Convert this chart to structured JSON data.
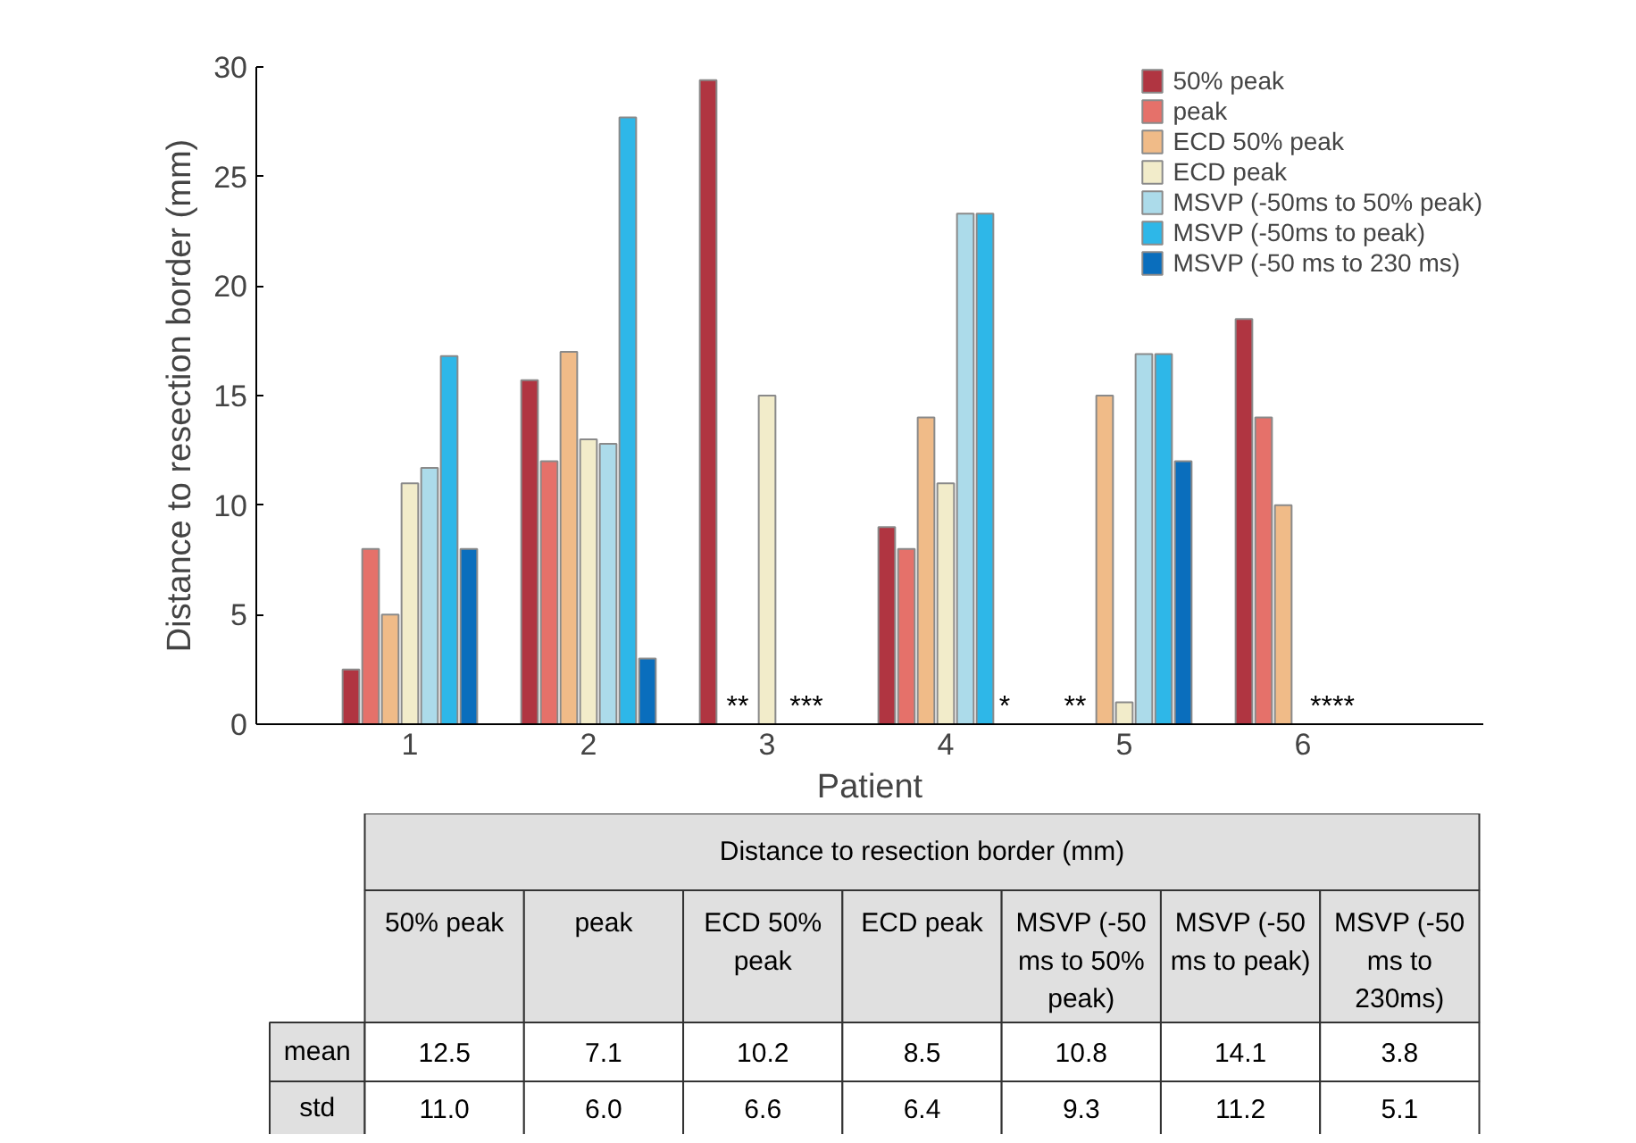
{
  "chart_data": {
    "type": "bar",
    "xlabel": "Patient",
    "ylabel": "Distance to resection border (mm)",
    "categories": [
      "1",
      "2",
      "3",
      "4",
      "5",
      "6"
    ],
    "series": [
      {
        "name": "50% peak",
        "color": "#b03541",
        "values": [
          2.5,
          15.7,
          29.4,
          9,
          null,
          18.5
        ]
      },
      {
        "name": "peak",
        "color": "#e5716a",
        "values": [
          8,
          12,
          null,
          8,
          null,
          14
        ]
      },
      {
        "name": "ECD 50% peak",
        "color": "#f0bb88",
        "values": [
          5,
          17,
          null,
          14,
          15,
          10
        ]
      },
      {
        "name": "ECD peak",
        "color": "#f2ecca",
        "values": [
          11,
          13,
          15,
          11,
          1,
          null
        ]
      },
      {
        "name": "MSVP (-50ms to 50% peak)",
        "color": "#acdbea",
        "values": [
          11.7,
          12.8,
          null,
          23.3,
          16.9,
          null
        ]
      },
      {
        "name": "MSVP (-50ms to peak)",
        "color": "#2eb7e8",
        "values": [
          16.8,
          27.7,
          null,
          23.3,
          16.9,
          null
        ]
      },
      {
        "name": "MSVP (-50 ms to 230 ms)",
        "color": "#0a6ebd",
        "values": [
          8,
          3,
          null,
          null,
          12,
          null
        ]
      }
    ],
    "ylim": [
      0,
      30
    ],
    "yticks": [
      0,
      5,
      10,
      15,
      20,
      25,
      30
    ],
    "grid": false,
    "legend": "top right",
    "annotations": [
      "Distance to resection border (mm)",
      "50% peak",
      "peak",
      "ECD 50% peak",
      "ECD peak",
      "MSVP (-50 ms to 50% peak)",
      "MSVP (-50 ms to peak)",
      "MSVP (-50 ms to 230ms)",
      "mean",
      "12.5",
      "7.1",
      "10.2",
      "8.5",
      "10.8",
      "14.1",
      "3.8",
      "std",
      "11.0",
      "6.0",
      "6.6",
      "6.4",
      "9.3",
      "11.2",
      "5.1",
      "**",
      "***",
      "*",
      "**",
      "****"
    ]
  }
}
